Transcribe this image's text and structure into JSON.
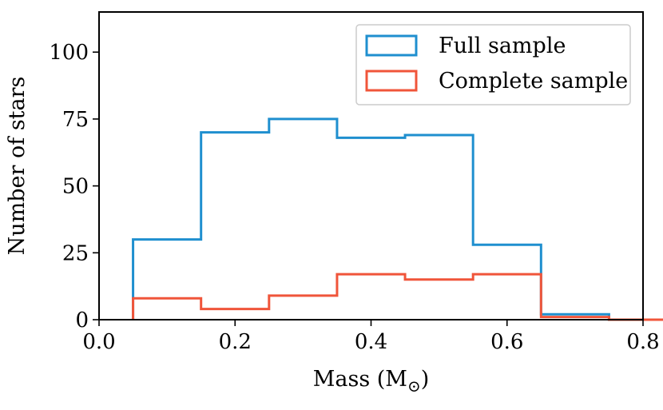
{
  "chart_data": {
    "type": "histogram",
    "title": "",
    "xlabel": "Mass (M",
    "xlabel_subscript": "⊙",
    "xlabel_suffix": ")",
    "ylabel": "Number of stars",
    "xlim": [
      0.0,
      0.8
    ],
    "ylim": [
      0,
      115
    ],
    "xticks": [
      0.0,
      0.2,
      0.4,
      0.6,
      0.8
    ],
    "xtick_labels": [
      "0.0",
      "0.2",
      "0.4",
      "0.6",
      "0.8"
    ],
    "yticks": [
      0,
      25,
      50,
      75,
      100
    ],
    "ytick_labels": [
      "0",
      "25",
      "50",
      "75",
      "100"
    ],
    "bin_edges": [
      0.05,
      0.15,
      0.25,
      0.35,
      0.45,
      0.55,
      0.65,
      0.75,
      0.85
    ],
    "series": [
      {
        "name": "Full sample",
        "color": "#1f8fcf",
        "values": [
          30,
          70,
          75,
          68,
          69,
          28,
          2,
          0
        ]
      },
      {
        "name": "Complete sample",
        "color": "#f0553a",
        "values": [
          8,
          4,
          9,
          17,
          15,
          17,
          1,
          0
        ]
      }
    ],
    "legend_position": "upper right",
    "grid": false
  }
}
